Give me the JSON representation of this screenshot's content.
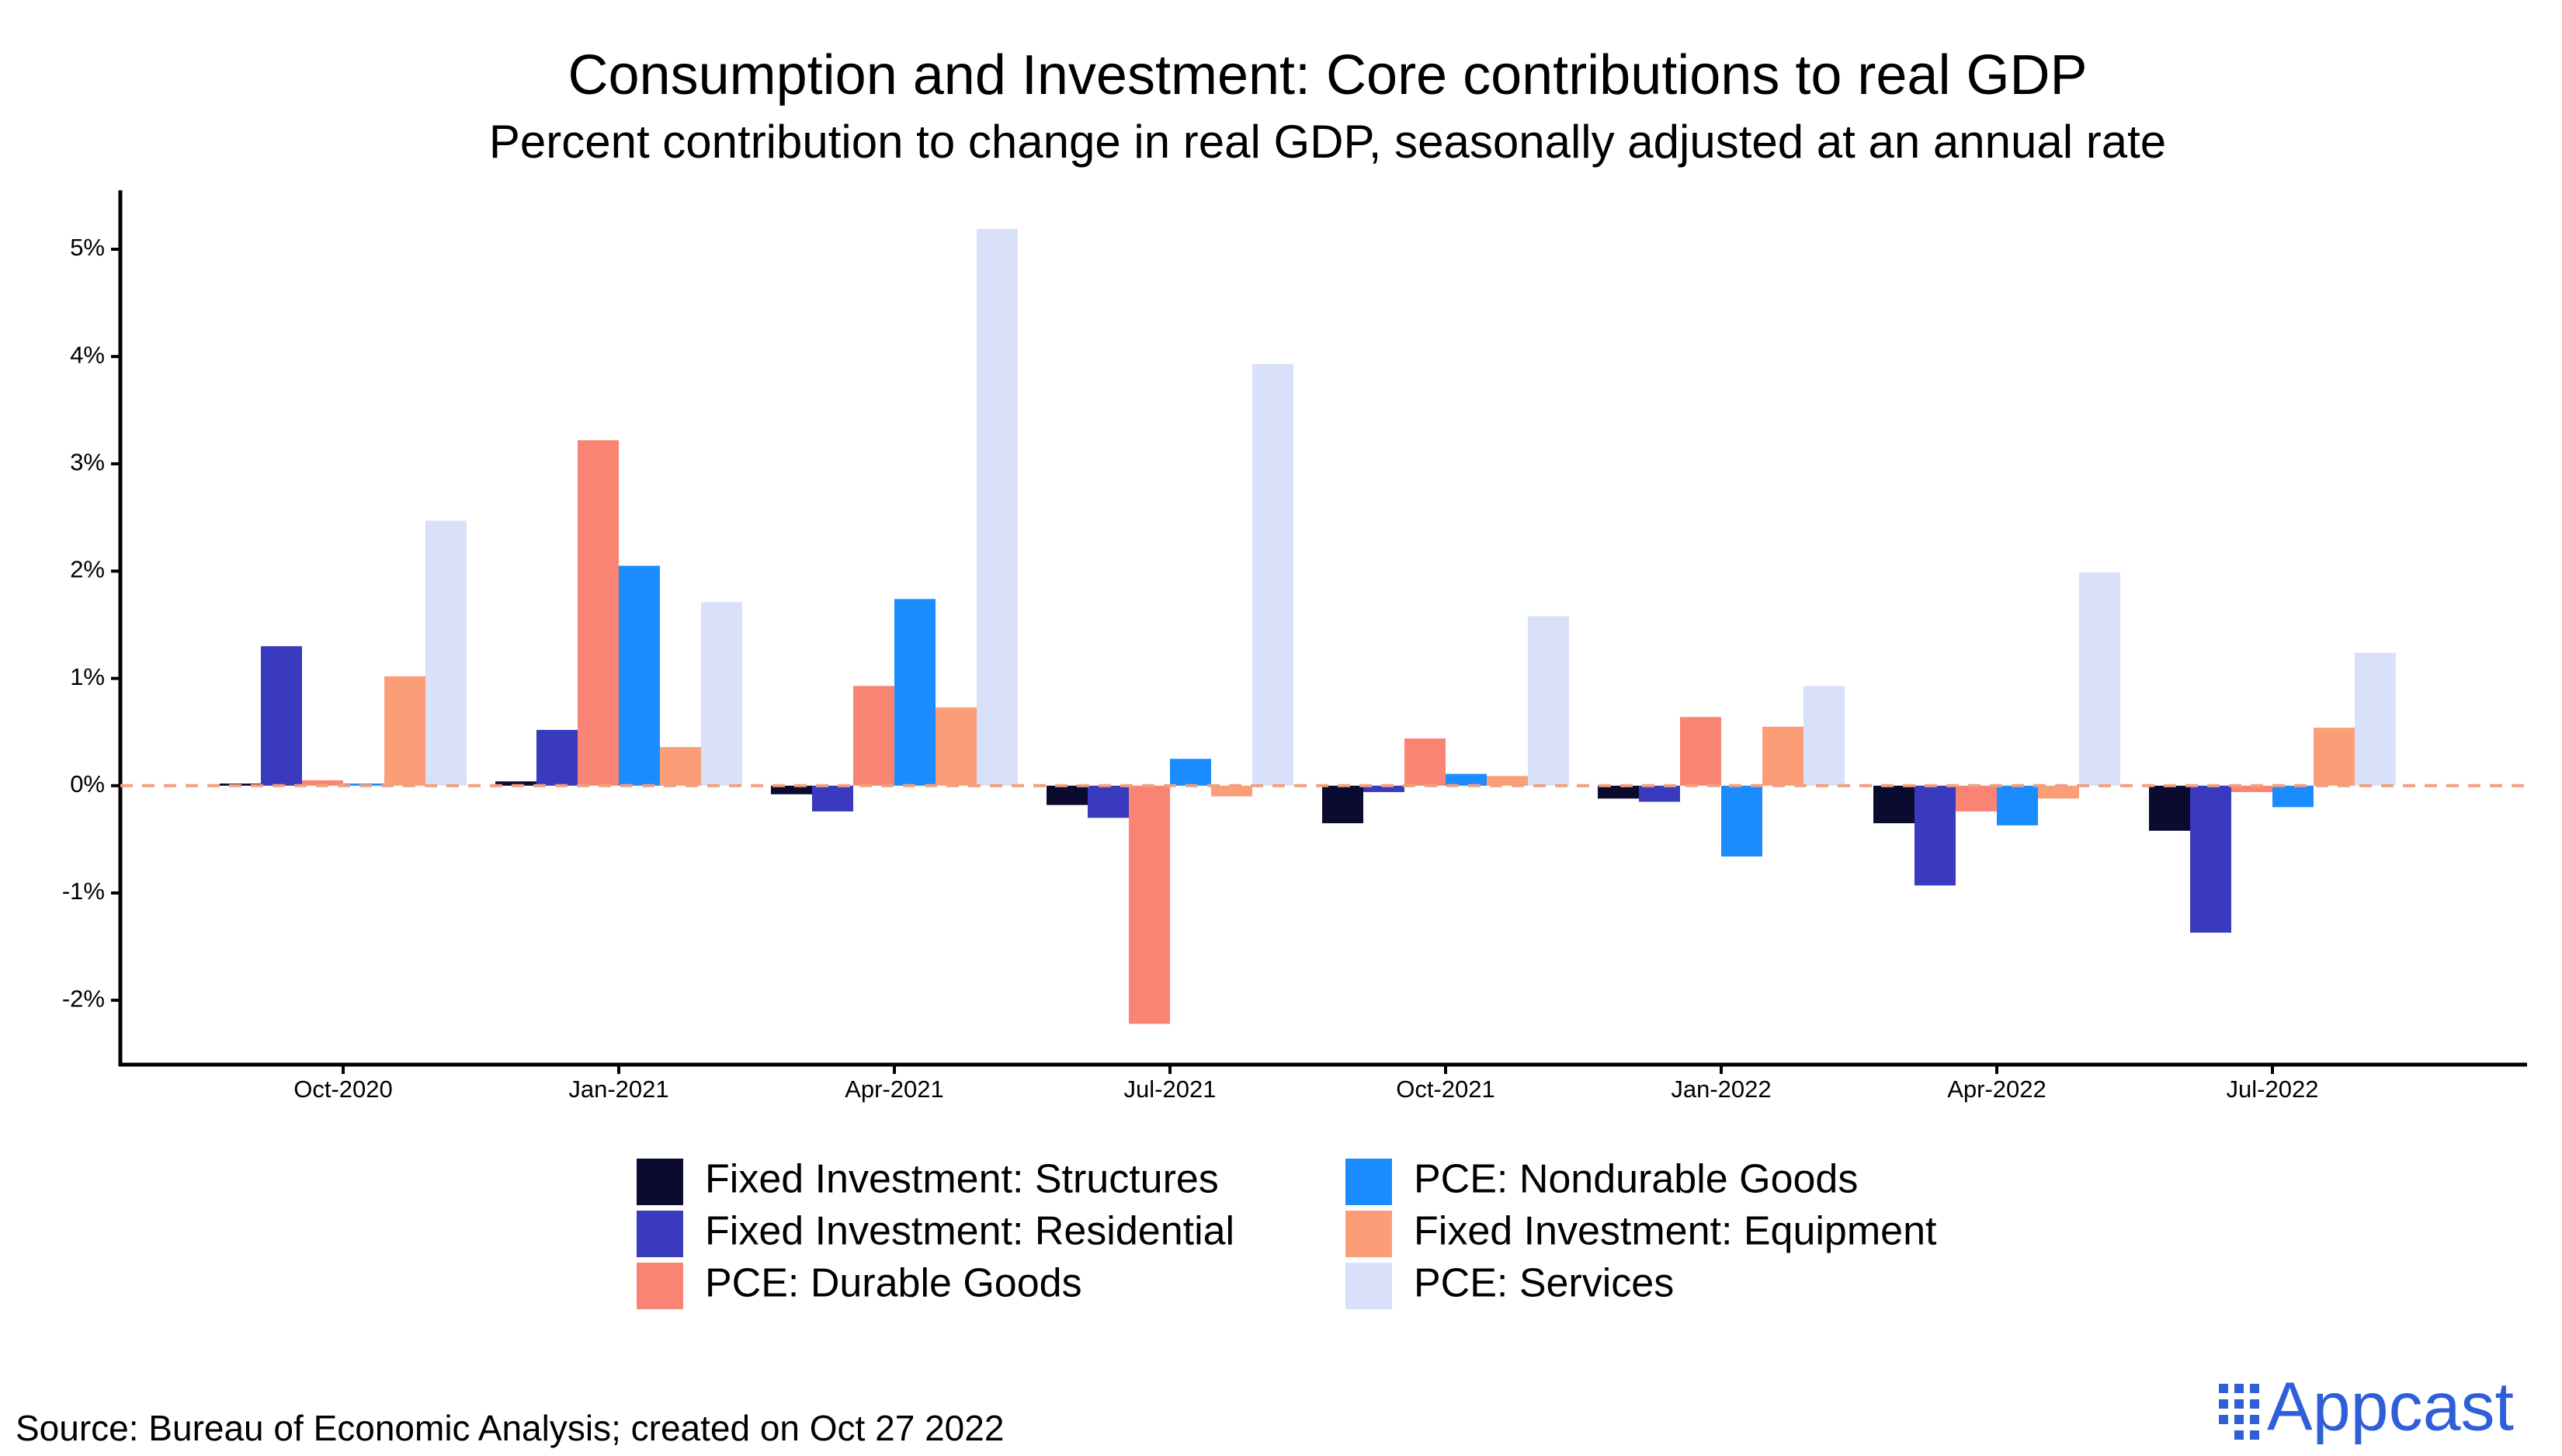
{
  "chart_data": {
    "type": "bar",
    "title": "Consumption and Investment: Core contributions to real GDP",
    "subtitle": "Percent contribution to change in real GDP, seasonally adjusted at an annual rate",
    "categories": [
      "Oct-2020",
      "Jan-2021",
      "Apr-2021",
      "Jul-2021",
      "Oct-2021",
      "Jan-2022",
      "Apr-2022",
      "Jul-2022"
    ],
    "series": [
      {
        "name": "Fixed Investment: Structures",
        "color": "#0b0b30",
        "values": [
          0.02,
          0.04,
          -0.08,
          -0.18,
          -0.35,
          -0.12,
          -0.35,
          -0.42
        ]
      },
      {
        "name": "Fixed Investment: Residential",
        "color": "#3a3abf",
        "values": [
          1.3,
          0.52,
          -0.24,
          -0.3,
          -0.06,
          -0.15,
          -0.93,
          -1.37
        ]
      },
      {
        "name": "PCE: Durable Goods",
        "color": "#fa8474",
        "values": [
          0.05,
          3.22,
          0.93,
          -2.22,
          0.44,
          0.64,
          -0.24,
          -0.06
        ]
      },
      {
        "name": "PCE: Nondurable Goods",
        "color": "#1a8cff",
        "values": [
          0.02,
          2.05,
          1.74,
          0.25,
          0.11,
          -0.66,
          -0.37,
          -0.2
        ]
      },
      {
        "name": "Fixed Investment: Equipment",
        "color": "#fb9e78",
        "values": [
          1.02,
          0.36,
          0.73,
          -0.1,
          0.09,
          0.55,
          -0.12,
          0.54
        ]
      },
      {
        "name": "PCE: Services",
        "color": "#d9e1fa",
        "values": [
          2.47,
          1.71,
          5.19,
          3.93,
          1.58,
          0.93,
          1.99,
          1.24
        ]
      }
    ],
    "ylim": [
      -2.6,
      5.55
    ],
    "yticks": [
      {
        "value": -2,
        "label": "-2%"
      },
      {
        "value": -1,
        "label": "-1%"
      },
      {
        "value": 0,
        "label": "0%"
      },
      {
        "value": 1,
        "label": "1%"
      },
      {
        "value": 2,
        "label": "2%"
      },
      {
        "value": 3,
        "label": "3%"
      },
      {
        "value": 4,
        "label": "4%"
      },
      {
        "value": 5,
        "label": "5%"
      }
    ],
    "legend": "bottom",
    "source": "Source: Bureau of Economic Analysis; created on Oct 27 2022",
    "logo": "Appcast"
  }
}
